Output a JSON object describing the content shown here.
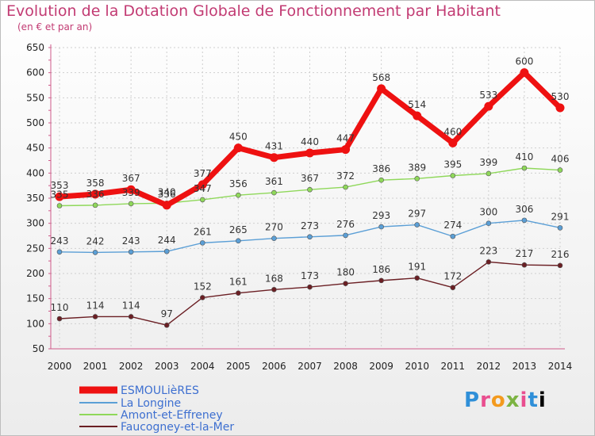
{
  "chart_data": {
    "type": "line",
    "title": "Evolution de la Dotation Globale de Fonctionnement par Habitant",
    "subtitle": "(en € et par an)",
    "x": [
      "2000",
      "2001",
      "2002",
      "2003",
      "2004",
      "2005",
      "2006",
      "2007",
      "2008",
      "2009",
      "2010",
      "2011",
      "2012",
      "2013",
      "2014"
    ],
    "ylim": [
      50,
      650
    ],
    "yticks": [
      50,
      100,
      150,
      200,
      250,
      300,
      350,
      400,
      450,
      500,
      550,
      600,
      650
    ],
    "grid": true,
    "legend_position": "bottom-left",
    "series": [
      {
        "name": "ESMOULièRES",
        "color": "#ee1111",
        "values": [
          353,
          358,
          367,
          336,
          377,
          450,
          431,
          440,
          447,
          568,
          514,
          460,
          533,
          600,
          530
        ],
        "labels": [
          "353",
          "358",
          "367",
          "336",
          "377",
          "450",
          "431",
          "440",
          "447",
          "568",
          "514",
          "460",
          "533",
          "600",
          "530"
        ]
      },
      {
        "name": "La Longine",
        "color": "#5b9fd6",
        "values": [
          243,
          242,
          243,
          244,
          261,
          265,
          270,
          273,
          276,
          293,
          297,
          274,
          300,
          306,
          291
        ],
        "labels": [
          "243",
          "242",
          "243",
          "244",
          "261",
          "265",
          "270",
          "273",
          "276",
          "293",
          "297",
          "274",
          "300",
          "306",
          "291"
        ]
      },
      {
        "name": "Amont-et-Effreney",
        "color": "#8fd85a",
        "values": [
          335,
          336,
          339,
          340,
          347,
          356,
          361,
          367,
          372,
          386,
          389,
          395,
          399,
          410,
          406
        ],
        "labels": [
          "335",
          "336",
          "339",
          "340",
          "347",
          "356",
          "361",
          "367",
          "372",
          "386",
          "389",
          "395",
          "399",
          "410",
          "406"
        ]
      },
      {
        "name": "Faucogney-et-la-Mer",
        "color": "#6b1f24",
        "values": [
          110,
          114,
          114,
          97,
          152,
          161,
          168,
          173,
          180,
          186,
          191,
          172,
          223,
          217,
          216
        ],
        "labels": [
          "110",
          "114",
          "114",
          "97",
          "152",
          "161",
          "168",
          "173",
          "180",
          "186",
          "191",
          "172",
          "223",
          "217",
          "216"
        ]
      }
    ]
  },
  "logo": {
    "letters": [
      "P",
      "r",
      "o",
      "x",
      "i",
      "t",
      "i"
    ]
  }
}
